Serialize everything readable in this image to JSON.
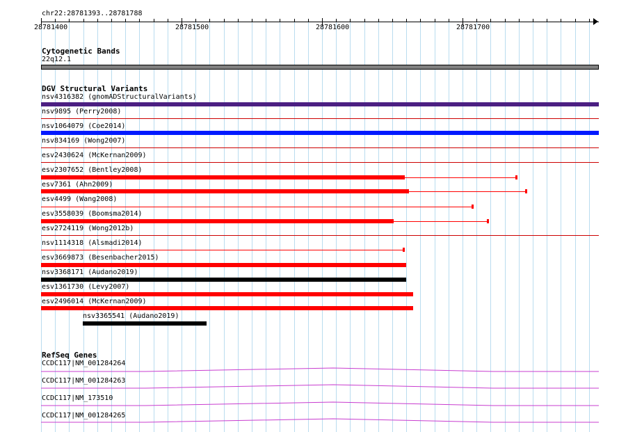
{
  "ruler": {
    "location": "chr22:28781393..28781788",
    "ticks": [
      "28781400",
      "28781500",
      "28781600",
      "28781700"
    ]
  },
  "tracks": {
    "cytoband": {
      "title": "Cytogenetic Bands",
      "band": "22q12.1"
    },
    "dgv": {
      "title": "DGV Structural Variants",
      "variants": [
        {
          "label": "nsv4316382 (gnomADStructuralVariants)",
          "color": "#4b1f82"
        },
        {
          "label": "nsv9895 (Perry2008)",
          "color": "#cc0000"
        },
        {
          "label": "nsv1064079 (Coe2014)",
          "color": "#0019ff"
        },
        {
          "label": "nsv834169 (Wong2007)",
          "color": "#cc0000"
        },
        {
          "label": "esv2430624 (McKernan2009)",
          "color": "#cc0000"
        },
        {
          "label": "esv2307652 (Bentley2008)",
          "color": "#ff0000"
        },
        {
          "label": "esv7361 (Ahn2009)",
          "color": "#ff0000"
        },
        {
          "label": "esv4499 (Wang2008)",
          "color": "#ff0000"
        },
        {
          "label": "esv3558039 (Boomsma2014)",
          "color": "#ff0000"
        },
        {
          "label": "esv2724119 (Wong2012b)",
          "color": "#cc0000"
        },
        {
          "label": "nsv1114318 (Alsmadi2014)",
          "color": "#ff0000"
        },
        {
          "label": "esv3669873 (Besenbacher2015)",
          "color": "#ff0000"
        },
        {
          "label": "nsv3368171 (Audano2019)",
          "color": "#000000"
        },
        {
          "label": "esv1361730 (Levy2007)",
          "color": "#ff0000"
        },
        {
          "label": "esv2496014 (McKernan2009)",
          "color": "#ff0000"
        },
        {
          "label": "nsv3365541 (Audano2019)",
          "color": "#000000"
        }
      ]
    },
    "refseq": {
      "title": "RefSeq Genes",
      "genes": [
        {
          "label": "CCDC117|NM_001284264",
          "color": "#c83ccf"
        },
        {
          "label": "CCDC117|NM_001284263",
          "color": "#c83ccf"
        },
        {
          "label": "CCDC117|NM_173510",
          "color": "#c83ccf"
        },
        {
          "label": "CCDC117|NM_001284265",
          "color": "#c83ccf"
        }
      ]
    }
  }
}
